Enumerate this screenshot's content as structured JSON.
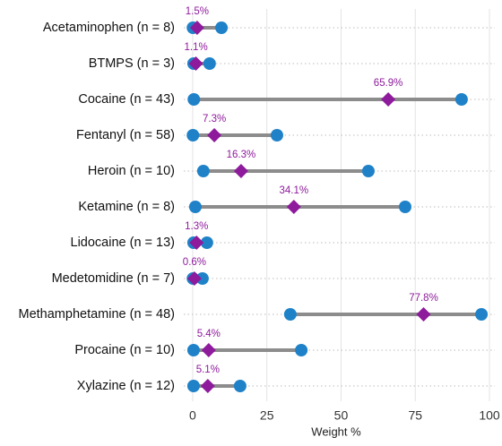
{
  "chart_data": {
    "type": "dumbbell",
    "x_label": "Weight %",
    "categories": [
      "Acetaminophen (n = 8)",
      "BTMPS (n = 3)",
      "Cocaine (n = 43)",
      "Fentanyl (n = 58)",
      "Heroin (n = 10)",
      "Ketamine (n = 8)",
      "Lidocaine (n = 13)",
      "Medetomidine (n = 7)",
      "Methamphetamine (n = 48)",
      "Procaine (n = 10)",
      "Xylazine (n = 12)"
    ],
    "low": [
      0.1,
      0.3,
      0.4,
      0.1,
      3.6,
      0.9,
      0.3,
      0.1,
      32.9,
      0.3,
      0.3
    ],
    "high": [
      9.7,
      5.7,
      90.6,
      28.4,
      59.2,
      71.6,
      4.8,
      3.3,
      97.3,
      36.6,
      16.0
    ],
    "median": [
      1.5,
      1.1,
      65.9,
      7.3,
      16.3,
      34.1,
      1.3,
      0.6,
      77.8,
      5.4,
      5.1
    ],
    "value_labels": [
      "1.5%",
      "1.1%",
      "65.9%",
      "7.3%",
      "16.3%",
      "34.1%",
      "1.3%",
      "0.6%",
      "77.8%",
      "5.4%",
      "5.1%"
    ],
    "range_color": "#1f82c8",
    "median_color": "#8e1a9c",
    "line_color": "#8c8c8c",
    "xlim": [
      -3,
      100
    ],
    "xticks": [
      0,
      25,
      50,
      75,
      100
    ],
    "grid": true
  }
}
